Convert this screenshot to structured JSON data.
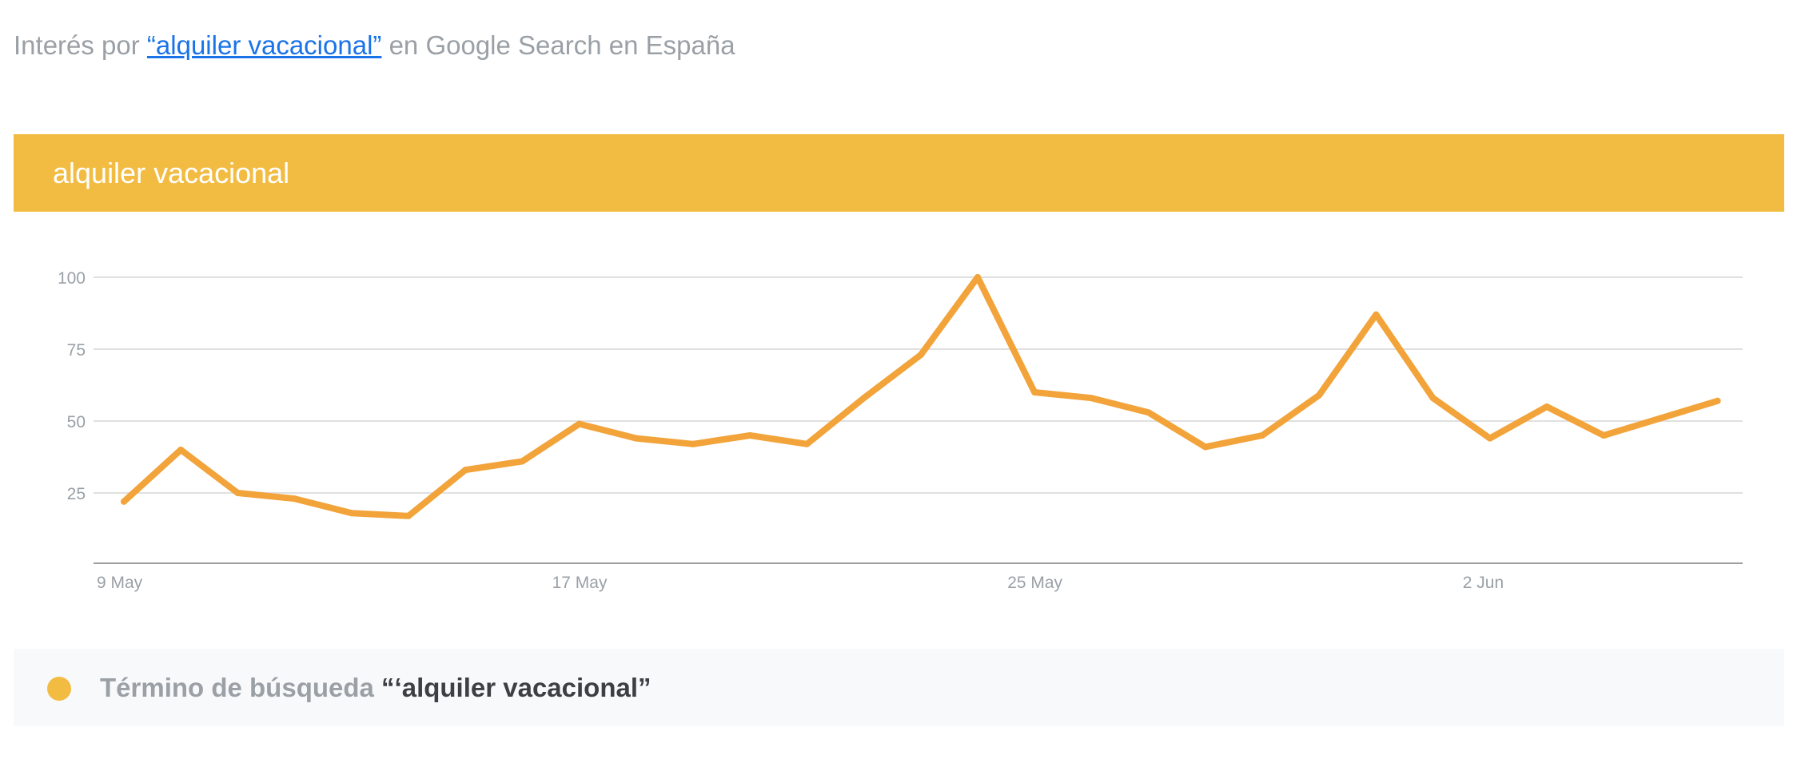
{
  "subtitle": {
    "prefix": "Interés por ",
    "link": "“alquiler vacacional”",
    "suffix": " en Google Search en España"
  },
  "header": {
    "title": "alquiler vacacional"
  },
  "colors": {
    "series": "#f2a33a",
    "header": "#f2bc42",
    "grid": "#e0e0e0",
    "axis": "#9e9e9e",
    "tick_text": "#9aa0a6"
  },
  "legend": {
    "prefix": "Término de búsqueda ",
    "term": "“‘alquiler vacacional”"
  },
  "chart_data": {
    "type": "line",
    "x": [
      "9 May",
      "10 May",
      "11 May",
      "12 May",
      "13 May",
      "14 May",
      "15 May",
      "16 May",
      "17 May",
      "18 May",
      "19 May",
      "20 May",
      "21 May",
      "22 May",
      "23 May",
      "24 May",
      "25 May",
      "26 May",
      "27 May",
      "28 May",
      "29 May",
      "30 May",
      "31 May",
      "1 Jun",
      "2 Jun",
      "3 Jun",
      "4 Jun",
      "5 Jun",
      "6 Jun"
    ],
    "series": [
      {
        "values": [
          22,
          40,
          25,
          23,
          18,
          17,
          33,
          36,
          49,
          44,
          42,
          45,
          42,
          58,
          73,
          100,
          60,
          58,
          53,
          41,
          45,
          59,
          87,
          58,
          44,
          55,
          45,
          51,
          57
        ]
      }
    ],
    "x_tick_labels": [
      "9 May",
      "17 May",
      "25 May",
      "2 Jun"
    ],
    "y_ticks": [
      25,
      50,
      75,
      100
    ],
    "ylim": [
      0,
      100
    ],
    "grid": true
  }
}
